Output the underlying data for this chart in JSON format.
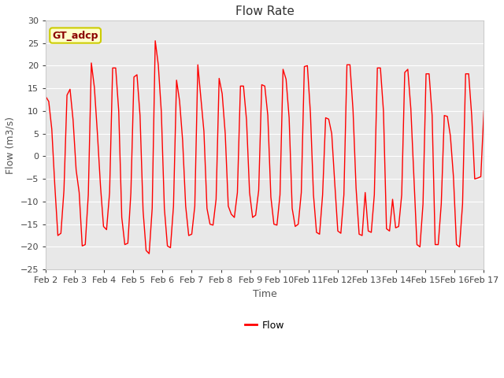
{
  "title": "Flow Rate",
  "xlabel": "Time",
  "ylabel": "Flow (m3/s)",
  "ylim": [
    -25,
    30
  ],
  "yticks": [
    -25,
    -20,
    -15,
    -10,
    -5,
    0,
    5,
    10,
    15,
    20,
    25,
    30
  ],
  "line_color": "red",
  "line_width": 1.0,
  "fig_bg_color": "#ffffff",
  "plot_bg_color": "#e8e8e8",
  "grid_color": "white",
  "legend_label": "GT_adcp",
  "legend_bg": "#ffffcc",
  "legend_border": "#cccc00",
  "legend_text_color": "#8b0000",
  "flow_legend_label": "Flow",
  "title_fontsize": 11,
  "label_fontsize": 9,
  "tick_fontsize": 8,
  "tidal_data": [
    13.2,
    12.1,
    6.0,
    -6.5,
    -17.5,
    -17.0,
    -7.5,
    13.5,
    14.8,
    8.0,
    -3.0,
    -8.0,
    -19.8,
    -19.5,
    -8.5,
    20.6,
    15.2,
    5.0,
    -6.5,
    -15.5,
    -16.2,
    -8.0,
    19.5,
    19.5,
    10.0,
    -13.5,
    -19.5,
    -19.2,
    -8.0,
    17.5,
    18.0,
    9.0,
    -12.0,
    -20.8,
    -21.5,
    -11.5,
    25.5,
    20.2,
    9.8,
    -11.5,
    -19.8,
    -20.2,
    -11.0,
    16.8,
    12.2,
    3.5,
    -11.0,
    -17.5,
    -17.2,
    -11.0,
    20.2,
    12.8,
    5.5,
    -11.5,
    -15.0,
    -15.2,
    -9.5,
    17.2,
    13.8,
    5.0,
    -11.0,
    -12.8,
    -13.5,
    -8.0,
    15.5,
    15.5,
    8.0,
    -8.0,
    -13.5,
    -13.0,
    -7.5,
    15.8,
    15.5,
    9.0,
    -9.0,
    -15.0,
    -15.2,
    -8.5,
    19.2,
    17.0,
    8.5,
    -11.5,
    -15.5,
    -15.0,
    -8.0,
    19.8,
    20.0,
    9.5,
    -8.5,
    -16.8,
    -17.2,
    -8.5,
    8.5,
    8.2,
    5.0,
    -6.0,
    -16.5,
    -17.0,
    -8.5,
    20.2,
    20.2,
    10.2,
    -7.0,
    -17.2,
    -17.5,
    -8.0,
    -16.5,
    -16.8,
    -8.5,
    19.5,
    19.5,
    10.0,
    -16.0,
    -16.5,
    -9.5,
    -15.8,
    -15.5,
    -8.5,
    18.5,
    19.2,
    10.5,
    -4.5,
    -19.5,
    -20.0,
    -10.5,
    18.2,
    18.2,
    9.0,
    -19.5,
    -19.5,
    -10.5,
    9.0,
    8.8,
    4.5,
    -4.5,
    -19.5,
    -20.0,
    -10.5,
    18.2,
    18.2,
    9.0,
    -5.0,
    -4.8,
    -4.5,
    10.0
  ],
  "x_tick_labels": [
    "Feb 2",
    "Feb 3",
    "Feb 4",
    "Feb 5",
    "Feb 6",
    "Feb 7",
    "Feb 8",
    "Feb 9",
    "Feb 10",
    "Feb 11",
    "Feb 12",
    "Feb 13",
    "Feb 14",
    "Feb 15",
    "Feb 16",
    "Feb 17"
  ]
}
